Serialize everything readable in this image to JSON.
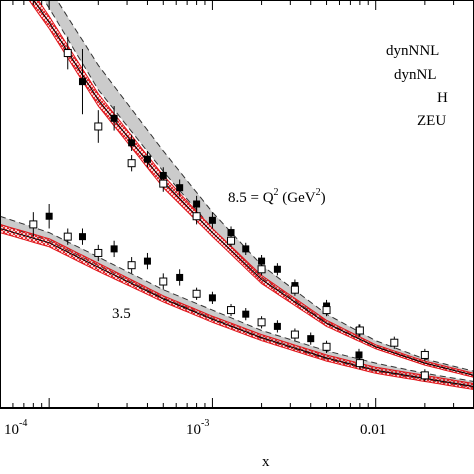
{
  "chart_data": {
    "type": "line",
    "xscale": "log",
    "xlim": [
      5e-05,
      0.04
    ],
    "ylim": [
      0,
      1
    ],
    "xlabel": "x",
    "x_ticks": [
      {
        "value": 0.0001,
        "base": "10",
        "exp": "-4"
      },
      {
        "value": 0.001,
        "base": "10",
        "exp": "-3"
      },
      {
        "value": 0.01,
        "label": "0.01"
      }
    ],
    "legend_entries": [
      "dynNNL",
      "dynNL",
      "H",
      "ZEU"
    ],
    "annotations": [
      {
        "text_pre": "8.5 = Q",
        "sup": "2",
        "text_mid": " (GeV",
        "sup2": "2",
        "text_post": ")",
        "at_x": 0.0013,
        "at_y": 0.38
      },
      {
        "text": "3.5",
        "at_x": 0.00023,
        "at_y": 0.2
      }
    ],
    "series": [
      {
        "group": "8.5",
        "band_gray": [
          [
            5e-05,
            1.18,
            1.22
          ],
          [
            0.0001,
            0.98,
            1.03
          ],
          [
            0.0002,
            0.78,
            0.84
          ],
          [
            0.0005,
            0.58,
            0.63
          ],
          [
            0.001,
            0.44,
            0.48
          ],
          [
            0.002,
            0.32,
            0.35
          ],
          [
            0.005,
            0.21,
            0.23
          ],
          [
            0.01,
            0.15,
            0.165
          ],
          [
            0.02,
            0.11,
            0.12
          ],
          [
            0.04,
            0.08,
            0.09
          ]
        ],
        "band_red": [
          [
            5e-05,
            1.1,
            1.14
          ],
          [
            0.0001,
            0.93,
            0.96
          ],
          [
            0.0002,
            0.74,
            0.77
          ],
          [
            0.0005,
            0.54,
            0.57
          ],
          [
            0.001,
            0.42,
            0.44
          ],
          [
            0.002,
            0.305,
            0.325
          ],
          [
            0.005,
            0.2,
            0.215
          ],
          [
            0.01,
            0.145,
            0.155
          ],
          [
            0.02,
            0.105,
            0.115
          ],
          [
            0.04,
            0.075,
            0.085
          ]
        ],
        "points_filled": [
          [
            0.00016,
            0.8,
            0.08
          ],
          [
            0.00025,
            0.71,
            0.03
          ],
          [
            0.00032,
            0.65,
            0.02
          ],
          [
            0.0004,
            0.61,
            0.02
          ],
          [
            0.0005,
            0.57,
            0.02
          ],
          [
            0.00063,
            0.54,
            0.02
          ],
          [
            0.0008,
            0.5,
            0.02
          ],
          [
            0.001,
            0.46,
            0.02
          ],
          [
            0.0013,
            0.43,
            0.015
          ],
          [
            0.0016,
            0.39,
            0.015
          ],
          [
            0.002,
            0.36,
            0.015
          ],
          [
            0.0025,
            0.34,
            0.015
          ],
          [
            0.0032,
            0.3,
            0.015
          ],
          [
            0.005,
            0.25,
            0.015
          ],
          [
            0.0079,
            0.19,
            0.015
          ]
        ],
        "points_open": [
          [
            0.00013,
            0.87,
            0.04
          ],
          [
            0.0002,
            0.69,
            0.04
          ],
          [
            0.00032,
            0.6,
            0.02
          ],
          [
            0.0005,
            0.55,
            0.02
          ],
          [
            0.0008,
            0.47,
            0.02
          ],
          [
            0.0013,
            0.41,
            0.015
          ],
          [
            0.002,
            0.34,
            0.015
          ],
          [
            0.0032,
            0.29,
            0.015
          ],
          [
            0.005,
            0.24,
            0.015
          ],
          [
            0.008,
            0.19,
            0.015
          ],
          [
            0.013,
            0.16,
            0.015
          ],
          [
            0.02,
            0.13,
            0.015
          ]
        ]
      },
      {
        "group": "3.5",
        "band_gray": [
          [
            5e-05,
            0.45,
            0.47
          ],
          [
            0.0001,
            0.41,
            0.43
          ],
          [
            0.0002,
            0.35,
            0.37
          ],
          [
            0.0005,
            0.27,
            0.29
          ],
          [
            0.001,
            0.22,
            0.24
          ],
          [
            0.002,
            0.17,
            0.19
          ],
          [
            0.005,
            0.12,
            0.14
          ],
          [
            0.01,
            0.09,
            0.11
          ],
          [
            0.02,
            0.07,
            0.085
          ],
          [
            0.04,
            0.05,
            0.065
          ]
        ],
        "band_red": [
          [
            5e-05,
            0.43,
            0.45
          ],
          [
            0.0001,
            0.395,
            0.415
          ],
          [
            0.0002,
            0.335,
            0.355
          ],
          [
            0.0005,
            0.26,
            0.275
          ],
          [
            0.001,
            0.21,
            0.225
          ],
          [
            0.002,
            0.165,
            0.18
          ],
          [
            0.005,
            0.115,
            0.13
          ],
          [
            0.01,
            0.085,
            0.1
          ],
          [
            0.02,
            0.065,
            0.08
          ],
          [
            0.04,
            0.045,
            0.06
          ]
        ],
        "points_filled": [
          [
            0.0001,
            0.47,
            0.03
          ],
          [
            0.00016,
            0.42,
            0.02
          ],
          [
            0.00025,
            0.39,
            0.02
          ],
          [
            0.0004,
            0.36,
            0.02
          ],
          [
            0.00063,
            0.32,
            0.02
          ],
          [
            0.001,
            0.27,
            0.015
          ],
          [
            0.0016,
            0.23,
            0.015
          ],
          [
            0.0025,
            0.2,
            0.015
          ],
          [
            0.004,
            0.17,
            0.015
          ],
          [
            0.0079,
            0.13,
            0.015
          ]
        ],
        "points_open": [
          [
            8e-05,
            0.45,
            0.03
          ],
          [
            0.00013,
            0.42,
            0.02
          ],
          [
            0.0002,
            0.38,
            0.02
          ],
          [
            0.00032,
            0.35,
            0.02
          ],
          [
            0.0005,
            0.31,
            0.02
          ],
          [
            0.0008,
            0.28,
            0.015
          ],
          [
            0.0013,
            0.24,
            0.015
          ],
          [
            0.002,
            0.21,
            0.015
          ],
          [
            0.0032,
            0.18,
            0.015
          ],
          [
            0.005,
            0.15,
            0.015
          ],
          [
            0.008,
            0.11,
            0.015
          ],
          [
            0.02,
            0.08,
            0.015
          ]
        ]
      }
    ],
    "colors": {
      "gray_band": "#b9b9b9",
      "red_band": "#e0161b",
      "dashed_line": "#333333"
    }
  }
}
